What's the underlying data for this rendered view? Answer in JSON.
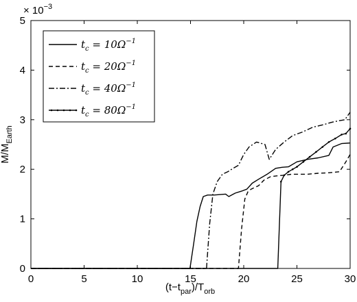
{
  "chart_data": {
    "type": "line",
    "xlabel": "(t−t",
    "xlabel_sub1": "par",
    "xlabel_mid": ")/T",
    "xlabel_sub2": "orb",
    "ylabel": "M/M",
    "ylabel_sub": "Earth",
    "y_multiplier": "× 10",
    "y_multiplier_exp": "−3",
    "xlim": [
      0,
      30
    ],
    "ylim": [
      0,
      5
    ],
    "xticks": [
      "0",
      "5",
      "10",
      "15",
      "20",
      "25",
      "30"
    ],
    "yticks": [
      "0",
      "1",
      "2",
      "3",
      "4",
      "5"
    ],
    "legend_position": "top-left",
    "series": [
      {
        "name": "t_c = 10Ω^{-1}",
        "legend_label": "t",
        "legend_sub": "c",
        "legend_rest": " = 10Ω",
        "legend_sup": "−1",
        "dash": "solid",
        "markers": false,
        "x": [
          0,
          14.95,
          15.3,
          15.6,
          15.9,
          16.2,
          16.6,
          17.2,
          17.8,
          18.3,
          18.6,
          19.2,
          19.8,
          20.3,
          20.8,
          21.4,
          22.2,
          23.0,
          23.6,
          24.2,
          25.0,
          26.0,
          27.0,
          28.0,
          28.4,
          29.2,
          30.0
        ],
        "y": [
          0,
          0,
          0.5,
          0.95,
          1.25,
          1.45,
          1.48,
          1.48,
          1.49,
          1.5,
          1.45,
          1.52,
          1.56,
          1.6,
          1.72,
          1.8,
          1.9,
          2.02,
          2.04,
          2.05,
          2.15,
          2.2,
          2.23,
          2.28,
          2.45,
          2.52,
          2.53
        ]
      },
      {
        "name": "t_c = 20Ω^{-1}",
        "legend_label": "t",
        "legend_sub": "c",
        "legend_rest": " = 20Ω",
        "legend_sup": "−1",
        "dash": "dashed",
        "markers": false,
        "x": [
          0,
          19.5,
          19.8,
          20.1,
          20.4,
          20.7,
          21.0,
          21.4,
          21.9,
          22.5,
          23.2,
          23.8,
          24.5,
          25.2,
          26.0,
          27.0,
          28.0,
          29.0,
          29.6,
          30.0
        ],
        "y": [
          0,
          0,
          0.8,
          1.4,
          1.55,
          1.6,
          1.63,
          1.67,
          1.78,
          1.85,
          1.87,
          1.88,
          1.9,
          1.9,
          1.9,
          1.92,
          1.93,
          1.95,
          2.15,
          2.3
        ]
      },
      {
        "name": "t_c = 40Ω^{-1}",
        "legend_label": "t",
        "legend_sub": "c",
        "legend_rest": " = 40Ω",
        "legend_sup": "−1",
        "dash": "dashdot",
        "markers": false,
        "x": [
          0,
          16.5,
          16.8,
          17.1,
          17.5,
          18.0,
          18.5,
          19.0,
          19.5,
          20.0,
          20.5,
          21.2,
          21.7,
          22.0,
          22.4,
          23.0,
          23.8,
          24.6,
          25.5,
          26.5,
          27.5,
          28.3,
          29.0,
          29.5,
          30.0
        ],
        "y": [
          0,
          0,
          0.9,
          1.5,
          1.75,
          1.9,
          1.95,
          2.02,
          2.08,
          2.3,
          2.45,
          2.55,
          2.52,
          2.5,
          2.2,
          2.4,
          2.55,
          2.68,
          2.75,
          2.85,
          2.9,
          2.95,
          2.98,
          3.0,
          3.15
        ]
      },
      {
        "name": "t_c = 80Ω^{-1}",
        "legend_label": "t",
        "legend_sub": "c",
        "legend_rest": " = 80Ω",
        "legend_sup": "−1",
        "dash": "solid",
        "markers": true,
        "x": [
          0,
          23.2,
          23.5,
          23.8,
          24.2,
          24.6,
          25.0,
          25.6,
          26.2,
          26.8,
          27.4,
          28.0,
          28.6,
          29.2,
          29.6,
          30.0
        ],
        "y": [
          0,
          0,
          1.75,
          1.88,
          1.95,
          2.0,
          2.05,
          2.15,
          2.25,
          2.35,
          2.45,
          2.55,
          2.62,
          2.7,
          2.72,
          2.82
        ]
      }
    ]
  }
}
